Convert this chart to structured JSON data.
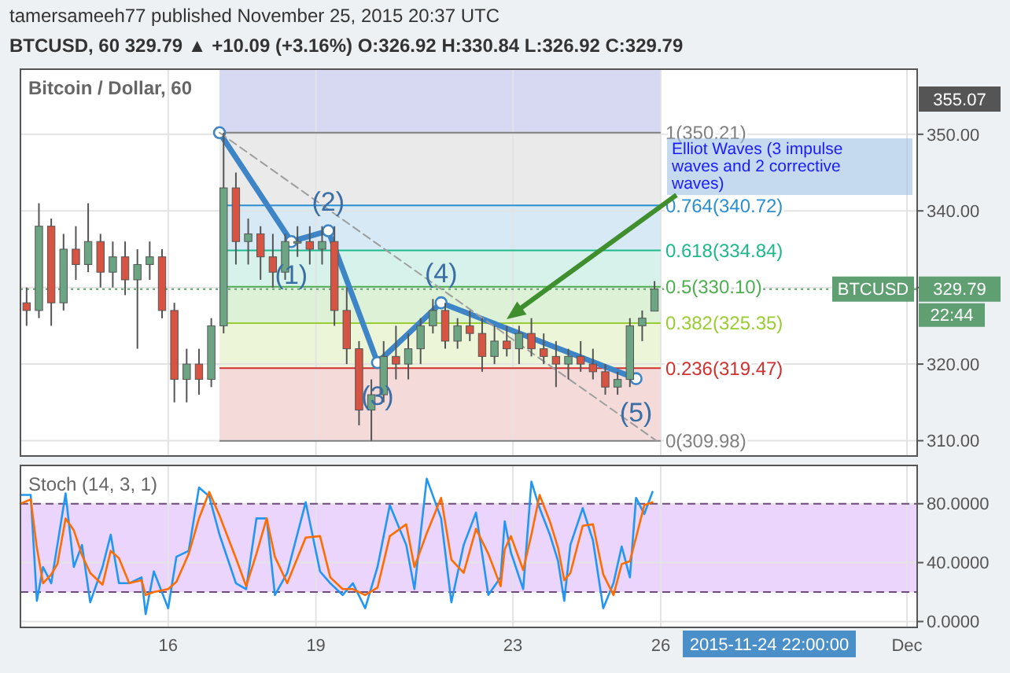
{
  "chart_data": [
    {
      "type": "candlestick",
      "title": "Bitcoin / Dollar, 60",
      "x": [
        "2015-11-13T03:00",
        "2015-11-13T09:00",
        "2015-11-13T15:00",
        "2015-11-13T21:00",
        "2015-11-14T03:00",
        "2015-11-14T09:00",
        "2015-11-14T15:00",
        "2015-11-14T21:00",
        "2015-11-15T03:00",
        "2015-11-15T09:00",
        "2015-11-15T15:00",
        "2015-11-15T21:00",
        "2015-11-16T03:00",
        "2015-11-16T09:00",
        "2015-11-16T15:00",
        "2015-11-16T21:00",
        "2015-11-17T03:00",
        "2015-11-17T09:00",
        "2015-11-17T15:00",
        "2015-11-17T21:00",
        "2015-11-18T03:00",
        "2015-11-18T09:00",
        "2015-11-18T15:00",
        "2015-11-18T21:00",
        "2015-11-19T03:00",
        "2015-11-19T09:00",
        "2015-11-19T15:00",
        "2015-11-19T21:00",
        "2015-11-20T03:00",
        "2015-11-20T09:00",
        "2015-11-20T15:00",
        "2015-11-20T21:00",
        "2015-11-21T03:00",
        "2015-11-21T09:00",
        "2015-11-21T15:00",
        "2015-11-21T21:00",
        "2015-11-22T03:00",
        "2015-11-22T09:00",
        "2015-11-22T15:00",
        "2015-11-22T21:00",
        "2015-11-23T03:00",
        "2015-11-23T09:00",
        "2015-11-23T15:00",
        "2015-11-23T21:00",
        "2015-11-24T03:00",
        "2015-11-24T09:00",
        "2015-11-24T15:00",
        "2015-11-24T21:00",
        "2015-11-25T03:00",
        "2015-11-25T09:00",
        "2015-11-25T15:00",
        "2015-11-25T21:00"
      ],
      "ohlc": [
        [
          328,
          330,
          325,
          327
        ],
        [
          327,
          341,
          326,
          338
        ],
        [
          338,
          339,
          325,
          328
        ],
        [
          328,
          337,
          327,
          335
        ],
        [
          335,
          338,
          331,
          333
        ],
        [
          333,
          341,
          332,
          336
        ],
        [
          336,
          337,
          330,
          332
        ],
        [
          332,
          336,
          330,
          334
        ],
        [
          334,
          336,
          329,
          331
        ],
        [
          331,
          335,
          322,
          333
        ],
        [
          333,
          336,
          331,
          334
        ],
        [
          334,
          335,
          326,
          327
        ],
        [
          327,
          328,
          315,
          318
        ],
        [
          318,
          322,
          315,
          320
        ],
        [
          320,
          322,
          316,
          318
        ],
        [
          318,
          326,
          317,
          325
        ],
        [
          325,
          350.21,
          324,
          343
        ],
        [
          343,
          345,
          333,
          336
        ],
        [
          336,
          339,
          333,
          337
        ],
        [
          337,
          338,
          331,
          334
        ],
        [
          334,
          337,
          330,
          332
        ],
        [
          332,
          337,
          331,
          336
        ],
        [
          336,
          338,
          334,
          336
        ],
        [
          336,
          338,
          333,
          335
        ],
        [
          335,
          338,
          333,
          336
        ],
        [
          336,
          338,
          325,
          327
        ],
        [
          327,
          330,
          320,
          322
        ],
        [
          322,
          323,
          312,
          314
        ],
        [
          314,
          318,
          309.98,
          316
        ],
        [
          316,
          323,
          315,
          321
        ],
        [
          321,
          325,
          318,
          320
        ],
        [
          320,
          324,
          318,
          322
        ],
        [
          322,
          326,
          320,
          325
        ],
        [
          325,
          328.5,
          324,
          327
        ],
        [
          327,
          328,
          322,
          323
        ],
        [
          323,
          326,
          322,
          325
        ],
        [
          325,
          327,
          323,
          324
        ],
        [
          324,
          326,
          319,
          321
        ],
        [
          321,
          325,
          320,
          323
        ],
        [
          323,
          325,
          321,
          322
        ],
        [
          322,
          325,
          320,
          324
        ],
        [
          324,
          326,
          321,
          322
        ],
        [
          322,
          324,
          320,
          321
        ],
        [
          321,
          323,
          317,
          320
        ],
        [
          320,
          322,
          318,
          321
        ],
        [
          321,
          323,
          319,
          320
        ],
        [
          320,
          322,
          318,
          319
        ],
        [
          319,
          320,
          316,
          317
        ],
        [
          317,
          319,
          316,
          318
        ],
        [
          318,
          326,
          317,
          325
        ],
        [
          325,
          327,
          323,
          326
        ],
        [
          326.92,
          330.84,
          326.92,
          329.79
        ]
      ],
      "series": [
        {
          "type": "line",
          "x": [
            "2015-11-17T01:00",
            "2015-11-18T12:00",
            "2015-11-19T06:00",
            "2015-11-20T06:00",
            "2015-11-21T13:00",
            "2015-11-25T12:00"
          ],
          "values": [
            350.21,
            336,
            337.4,
            320.2,
            328,
            318.1
          ],
          "color": "#3d85c6",
          "marker": "circle"
        },
        {
          "type": "line",
          "x": [
            "2015-11-17T01:00",
            "2015-11-25T22:00"
          ],
          "values": [
            350.21,
            309.98
          ],
          "color": "#9e9e9e",
          "line_style": "dashed"
        }
      ],
      "xlim": [
        "2015-11-13T00:00",
        "2015-12-01T05:00"
      ],
      "xticks": [
        {
          "value": "2015-11-16T00:00",
          "label": null
        },
        {
          "value": "2015-11-19T00:00",
          "label": null
        },
        {
          "value": "2015-11-23T00:00",
          "label": null
        },
        {
          "value": "2015-11-26T00:00",
          "label": null
        },
        {
          "value": "2015-12-01T00:00",
          "label": null
        }
      ],
      "ylim": [
        308,
        358.5
      ],
      "yticks": [
        {
          "value": 310,
          "label": "310.00"
        },
        {
          "value": 320,
          "label": "320.00"
        },
        {
          "value": 330,
          "label": null
        },
        {
          "value": 340,
          "label": "340.00"
        },
        {
          "value": 350,
          "label": "350.00"
        }
      ],
      "tick_labels": "y",
      "grid": true,
      "bands": [
        {
          "axis": "y",
          "from": 350.21,
          "to": 358.5,
          "color": "#d3d5f2"
        },
        {
          "axis": "y",
          "from": 340.72,
          "to": 350.21,
          "color": "#e8e8e8"
        },
        {
          "axis": "y",
          "from": 334.84,
          "to": 340.72,
          "color": "#d2e7f4"
        },
        {
          "axis": "y",
          "from": 330.1,
          "to": 334.84,
          "color": "#d3f1e8"
        },
        {
          "axis": "y",
          "from": 325.35,
          "to": 330.1,
          "color": "#d9f0d3"
        },
        {
          "axis": "y",
          "from": 319.47,
          "to": 325.35,
          "color": "#ebf4d5"
        },
        {
          "axis": "y",
          "from": 309.98,
          "to": 319.47,
          "color": "#f4d6d6"
        }
      ],
      "ref_lines": [
        {
          "axis": "y",
          "value": 350.21,
          "label": "1(350.21)",
          "color": "#808080"
        },
        {
          "axis": "y",
          "value": 340.72,
          "label": "0.764(340.72)",
          "color": "#2b8fd0"
        },
        {
          "axis": "y",
          "value": 334.84,
          "label": "0.618(334.84)",
          "color": "#1db98b"
        },
        {
          "axis": "y",
          "value": 330.1,
          "label": "0.5(330.10)",
          "color": "#4caf50"
        },
        {
          "axis": "y",
          "value": 325.35,
          "label": "0.382(325.35)",
          "color": "#9acd32"
        },
        {
          "axis": "y",
          "value": 319.47,
          "label": "0.236(319.47)",
          "color": "#d32f2f"
        },
        {
          "axis": "y",
          "value": 309.98,
          "label": "0(309.98)",
          "color": "#808080"
        },
        {
          "axis": "y",
          "value": 329.79,
          "label": "BTCUSD",
          "color": "#5f9f72",
          "line_style": "dotted"
        }
      ],
      "annotations": [
        "tamersameeh77 published November 25, 2015 20:37 UTC",
        "BTCUSD, 60  329.79 ▲ +10.09 (+3.16%)  O:326.92  H:330.84  L:326.92  C:329.79",
        "355.07",
        "22:44",
        "2015-11-24 22:00:00",
        "329.79",
        "Elliot Waves (3 impulse waves and 2 corrective waves)",
        {
          "text": "(1)",
          "x": "2015-11-18T12:00",
          "y": 336
        },
        {
          "text": "(2)",
          "x": "2015-11-19T06:00",
          "y": 337.4
        },
        {
          "text": "(3)",
          "x": "2015-11-20T06:00",
          "y": 320.2
        },
        {
          "text": "(4)",
          "x": "2015-11-21T13:00",
          "y": 328
        },
        {
          "text": "(5)",
          "x": "2015-11-25T12:00",
          "y": 318.1
        }
      ]
    },
    {
      "type": "line",
      "title": "Stoch (14, 3, 1)",
      "x": [
        "2015-11-13T00:00",
        "2015-11-13T05:00",
        "2015-11-13T08:00",
        "2015-11-13T11:00",
        "2015-11-13T15:00",
        "2015-11-13T18:00",
        "2015-11-13T22:00",
        "2015-11-14T02:00",
        "2015-11-14T06:00",
        "2015-11-14T10:00",
        "2015-11-14T16:00",
        "2015-11-14T20:00",
        "2015-11-15T00:00",
        "2015-11-15T05:00",
        "2015-11-15T11:00",
        "2015-11-15T13:00",
        "2015-11-15T17:00",
        "2015-11-16T00:00",
        "2015-11-16T04:00",
        "2015-11-16T10:00",
        "2015-11-16T15:00",
        "2015-11-16T20:00",
        "2015-11-17T01:00",
        "2015-11-17T09:00",
        "2015-11-17T14:00",
        "2015-11-17T19:00",
        "2015-11-18T00:00",
        "2015-11-18T04:00",
        "2015-11-18T10:00",
        "2015-11-18T19:00",
        "2015-11-19T02:00",
        "2015-11-19T07:00",
        "2015-11-19T13:00",
        "2015-11-19T18:00",
        "2015-11-20T00:00",
        "2015-11-20T06:00",
        "2015-11-20T12:00",
        "2015-11-20T20:00",
        "2015-11-21T00:00",
        "2015-11-21T06:00",
        "2015-11-21T13:00",
        "2015-11-21T18:00",
        "2015-11-22T00:00",
        "2015-11-22T06:00",
        "2015-11-22T12:00",
        "2015-11-22T18:00",
        "2015-11-22T20:00",
        "2015-11-22T23:00",
        "2015-11-23T05:00",
        "2015-11-23T09:00",
        "2015-11-23T13:00",
        "2015-11-23T18:00",
        "2015-11-23T22:00",
        "2015-11-24T01:00",
        "2015-11-24T04:00",
        "2015-11-24T10:00",
        "2015-11-24T15:00",
        "2015-11-24T20:00",
        "2015-11-25T01:00",
        "2015-11-25T05:00",
        "2015-11-25T09:00",
        "2015-11-25T12:00",
        "2015-11-25T16:00",
        "2015-11-25T20:00"
      ],
      "series": [
        {
          "color": "#2196f3",
          "values": [
            86,
            86,
            14,
            37,
            26,
            52,
            87,
            37,
            52,
            13,
            37,
            59,
            26,
            26,
            30,
            5,
            34,
            9,
            44,
            48,
            91,
            85,
            59,
            26,
            22,
            70,
            70,
            18,
            33,
            81,
            34,
            26,
            18,
            26,
            9,
            37,
            79,
            52,
            22,
            97,
            70,
            13,
            52,
            74,
            18,
            30,
            68,
            47,
            22,
            95,
            77,
            59,
            41,
            14,
            52,
            77,
            55,
            9,
            26,
            51,
            30,
            84,
            73,
            88
          ]
        },
        {
          "color": "#ff6d00",
          "values": [
            80,
            83,
            50,
            26,
            32,
            39,
            70,
            62,
            45,
            33,
            25,
            48,
            43,
            26,
            28,
            18,
            20,
            22,
            27,
            46,
            70,
            88,
            72,
            43,
            24,
            46,
            70,
            44,
            26,
            57,
            58,
            30,
            22,
            22,
            18,
            23,
            58,
            66,
            37,
            60,
            84,
            42,
            33,
            63,
            46,
            24,
            49,
            58,
            35,
            59,
            86,
            68,
            50,
            28,
            33,
            65,
            66,
            32,
            18,
            39,
            41,
            57,
            79,
            81
          ]
        }
      ],
      "xlim": [
        "2015-11-13T00:00",
        "2015-12-01T05:00"
      ],
      "xticks": [
        {
          "value": "2015-11-16T00:00",
          "label": "16"
        },
        {
          "value": "2015-11-19T00:00",
          "label": "19"
        },
        {
          "value": "2015-11-23T00:00",
          "label": "23"
        },
        {
          "value": "2015-11-26T00:00",
          "label": "26"
        },
        {
          "value": "2015-12-01T00:00",
          "label": "Dec"
        }
      ],
      "ylim": [
        -4,
        106
      ],
      "yticks": [
        {
          "value": 0,
          "label": "0.0000"
        },
        {
          "value": 40,
          "label": "40.0000"
        },
        {
          "value": 80,
          "label": "80.0000"
        }
      ],
      "grid": true,
      "bands": [
        {
          "axis": "y",
          "from": 20,
          "to": 80,
          "color": "#e9d0fc"
        }
      ],
      "ref_lines": [
        {
          "axis": "y",
          "value": 20,
          "color": "#6d4b7a",
          "line_style": "dashed"
        },
        {
          "axis": "y",
          "value": 80,
          "color": "#6d4b7a",
          "line_style": "dashed"
        }
      ]
    }
  ]
}
